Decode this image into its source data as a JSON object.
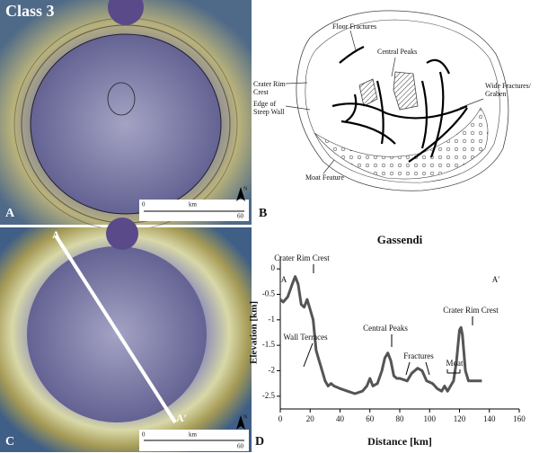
{
  "panel_a": {
    "title": "Class 3",
    "label": "A",
    "scale": {
      "start": 0,
      "unit": "km",
      "end": 60
    },
    "north": "N"
  },
  "panel_b": {
    "label": "B",
    "annotations": [
      "Floor Fractures",
      "Central Peaks",
      "Crater Rim Crest",
      "Edge of Steep Wall",
      "Wide Fractures/ Graben",
      "Moat Feature"
    ]
  },
  "panel_c": {
    "label": "C",
    "profile_start": "A",
    "profile_end": "A′",
    "scale": {
      "start": 0,
      "unit": "km",
      "end": 60
    },
    "north": "N"
  },
  "panel_d": {
    "label": "D"
  },
  "chart_data": {
    "type": "line",
    "title": "Gassendi",
    "x_label": "Distance [km]",
    "y_label": "Elevation [km]",
    "x": [
      0,
      2,
      5,
      8,
      10,
      12,
      14,
      16,
      18,
      20,
      22,
      24,
      26,
      28,
      30,
      32,
      34,
      36,
      40,
      45,
      50,
      55,
      58,
      60,
      62,
      65,
      68,
      70,
      72,
      74,
      76,
      78,
      80,
      85,
      88,
      92,
      95,
      98,
      102,
      105,
      108,
      110,
      112,
      114,
      116,
      118,
      120,
      121,
      122,
      124,
      126,
      130,
      135
    ],
    "values": [
      -0.6,
      -0.65,
      -0.55,
      -0.3,
      -0.15,
      -0.3,
      -0.7,
      -0.75,
      -0.6,
      -0.8,
      -1.0,
      -1.6,
      -1.8,
      -2.0,
      -2.2,
      -2.3,
      -2.25,
      -2.3,
      -2.35,
      -2.4,
      -2.45,
      -2.4,
      -2.3,
      -2.15,
      -2.3,
      -2.25,
      -2.0,
      -1.75,
      -1.65,
      -1.8,
      -2.1,
      -2.15,
      -2.15,
      -2.2,
      -2.05,
      -1.95,
      -2.0,
      -2.2,
      -2.25,
      -2.35,
      -2.4,
      -2.3,
      -2.4,
      -2.3,
      -2.2,
      -1.8,
      -1.2,
      -1.15,
      -1.3,
      -2.0,
      -2.2,
      -2.2,
      -2.2
    ],
    "color": "#555555",
    "xlim": [
      0,
      160
    ],
    "xticks": [
      0,
      20,
      40,
      60,
      80,
      100,
      120,
      140,
      160
    ],
    "ylim": [
      -2.75,
      0.25
    ],
    "yticks": [
      0,
      -0.5,
      -1,
      -1.5,
      -2,
      -2.5
    ],
    "annotations": [
      "Crater Rim Crest",
      "Wall Terraces",
      "Central Peaks",
      "Fractures",
      "Moat",
      "Crater Rim Crest",
      "A",
      "A′"
    ]
  }
}
